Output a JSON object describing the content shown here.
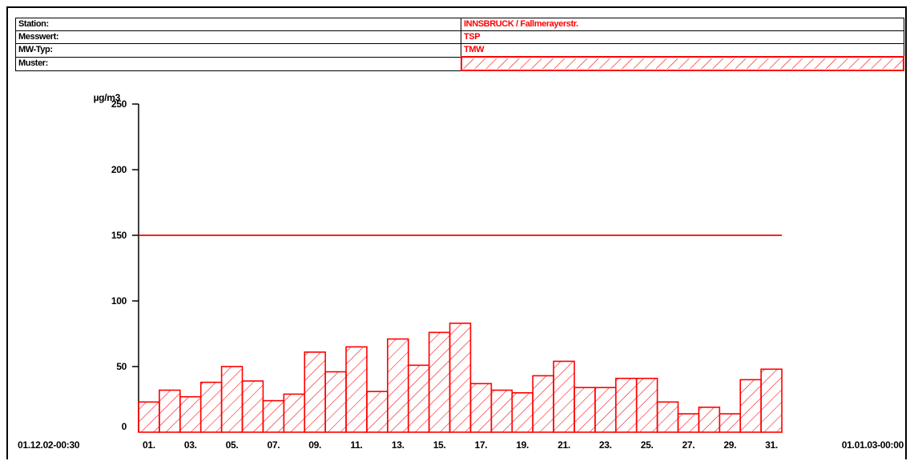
{
  "info": {
    "rows": [
      {
        "label": "Station:",
        "value": "INNSBRUCK / Fallmerayerstr."
      },
      {
        "label": "Messwert:",
        "value": "TSP"
      },
      {
        "label": "MW-Typ:",
        "value": "TMW"
      },
      {
        "label": "Muster:",
        "value": ""
      }
    ]
  },
  "colors": {
    "accent": "#ff0000",
    "axis": "#000000",
    "background": "#ffffff"
  },
  "chart_data": {
    "type": "bar",
    "ylabel": "µg/m3",
    "ylim": [
      0,
      250
    ],
    "yticks": [
      "0",
      "50",
      "100",
      "150",
      "200",
      "250"
    ],
    "start_label": "01.12.02-00:30",
    "end_label": "01.01.03-00:00",
    "x_tick_labels": [
      "01.",
      "03.",
      "05.",
      "07.",
      "09.",
      "11.",
      "13.",
      "15.",
      "17.",
      "19.",
      "21.",
      "23.",
      "25.",
      "27.",
      "29.",
      "31."
    ],
    "categories": [
      "01.",
      "02.",
      "03.",
      "04.",
      "05.",
      "06.",
      "07.",
      "08.",
      "09.",
      "10.",
      "11.",
      "12.",
      "13.",
      "14.",
      "15.",
      "16.",
      "17.",
      "18.",
      "19.",
      "20.",
      "21.",
      "22.",
      "23.",
      "24.",
      "25.",
      "26.",
      "27.",
      "28.",
      "29.",
      "30.",
      "31."
    ],
    "values": [
      23,
      32,
      27,
      38,
      50,
      39,
      24,
      29,
      61,
      46,
      65,
      31,
      71,
      51,
      76,
      83,
      37,
      32,
      30,
      43,
      54,
      34,
      34,
      41,
      41,
      23,
      14,
      19,
      14,
      40,
      48
    ],
    "threshold": 150,
    "pattern": "hatched",
    "grid": false
  }
}
